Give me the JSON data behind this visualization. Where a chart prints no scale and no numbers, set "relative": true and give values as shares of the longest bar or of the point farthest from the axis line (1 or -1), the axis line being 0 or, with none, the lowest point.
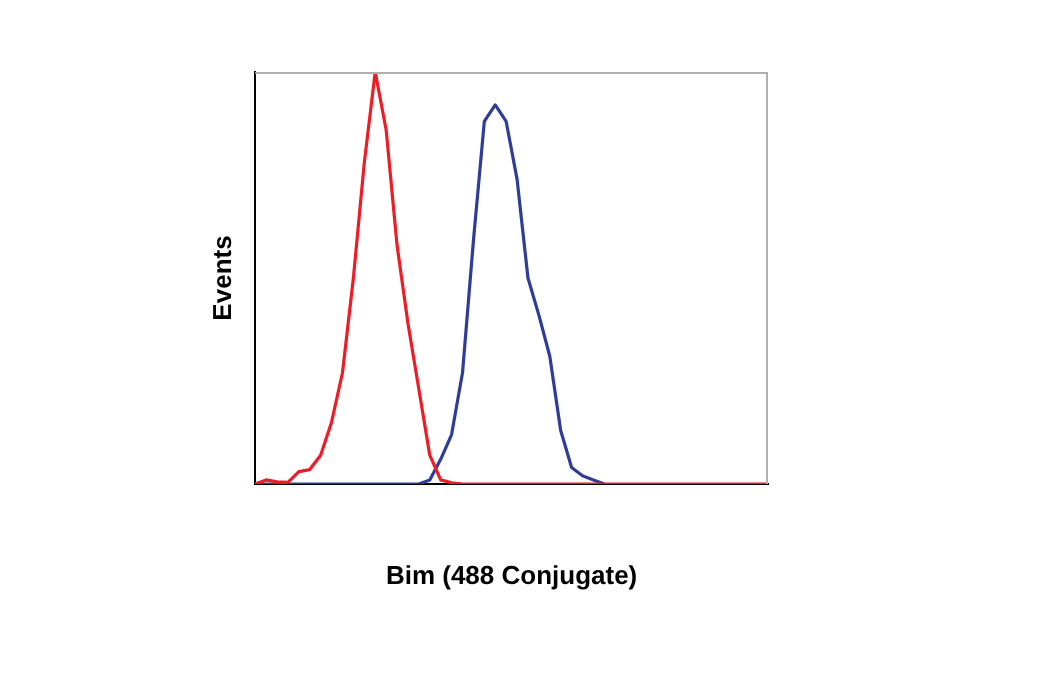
{
  "chart_data": {
    "type": "line",
    "relative": true,
    "xlabel": "Bim (488 Conjugate)",
    "ylabel": "Events",
    "grid": false,
    "legend": false,
    "marker": "none",
    "line_style": "solid",
    "categories": [
      null,
      null,
      null,
      null,
      null,
      null,
      null,
      null,
      null,
      null,
      null,
      null,
      null,
      null,
      null,
      null,
      null,
      null,
      null,
      null,
      null,
      null,
      null,
      null,
      null,
      null,
      null,
      null,
      null,
      null,
      null,
      null,
      null,
      null,
      null,
      null,
      null,
      null,
      null,
      null,
      null,
      null,
      null,
      null,
      null,
      null,
      null,
      null
    ],
    "series": [
      {
        "color": "#ee1c25",
        "values": [
          0,
          0.01,
          0.005,
          0.004,
          0.03,
          0.035,
          0.07,
          0.15,
          0.27,
          0.5,
          0.78,
          1,
          0.86,
          0.58,
          0.39,
          0.23,
          0.07,
          0.01,
          0.003,
          0,
          0,
          0,
          0,
          0,
          0,
          0,
          0,
          0,
          0,
          0,
          0,
          0,
          0,
          0,
          0,
          0,
          0,
          0,
          0,
          0,
          0,
          0,
          0,
          0,
          0,
          0,
          0,
          0
        ]
      },
      {
        "color": "#2e3d98",
        "values": [
          0,
          0,
          0,
          0,
          0,
          0,
          0,
          0,
          0,
          0,
          0,
          0,
          0,
          0,
          0,
          0,
          0.01,
          0.06,
          0.12,
          0.27,
          0.59,
          0.88,
          0.92,
          0.88,
          0.74,
          0.5,
          0.41,
          0.31,
          0.13,
          0.04,
          0.02,
          0.01,
          0,
          null,
          null,
          null,
          null,
          null,
          null,
          null,
          null,
          null,
          null,
          null,
          null,
          null,
          null,
          null
        ]
      }
    ]
  }
}
